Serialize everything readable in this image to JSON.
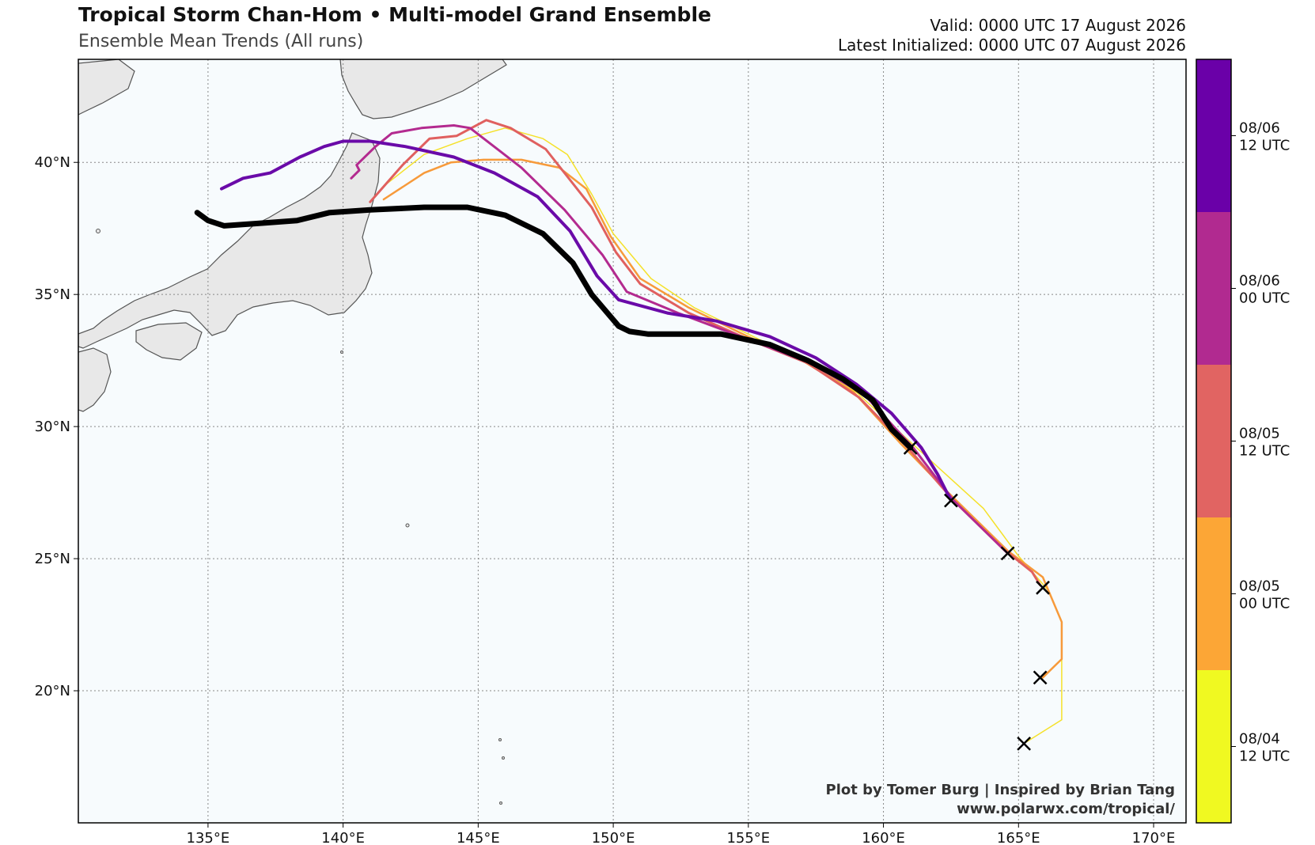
{
  "title": "Tropical Storm Chan-Hom • Multi-model Grand Ensemble",
  "subtitle": "Ensemble Mean Trends (All runs)",
  "valid": "Valid: 0000 UTC 17 August 2026",
  "latest": "Latest Initialized: 0000 UTC 07 August 2026",
  "credit_line1": "Plot by Tomer Burg | Inspired by Brian Tang",
  "credit_line2": "www.polarwx.com/tropical/",
  "colors": {
    "ocean": "#f7fbfd",
    "land": "#e8e8e8",
    "coast": "#555555",
    "grid": "#888888",
    "latest_track": "#000000"
  },
  "map": {
    "lon_range": [
      130.2,
      171.2
    ],
    "lat_range": [
      15.0,
      43.9
    ],
    "lon_ticks": [
      {
        "value": 135,
        "label": "135°E"
      },
      {
        "value": 140,
        "label": "140°E"
      },
      {
        "value": 145,
        "label": "145°E"
      },
      {
        "value": 150,
        "label": "150°E"
      },
      {
        "value": 155,
        "label": "155°E"
      },
      {
        "value": 160,
        "label": "160°E"
      },
      {
        "value": 165,
        "label": "165°E"
      },
      {
        "value": 170,
        "label": "170°E"
      }
    ],
    "lat_ticks": [
      {
        "value": 20,
        "label": "20°N"
      },
      {
        "value": 25,
        "label": "25°N"
      },
      {
        "value": 30,
        "label": "30°N"
      },
      {
        "value": 35,
        "label": "35°N"
      },
      {
        "value": 40,
        "label": "40°N"
      }
    ],
    "grid": true
  },
  "colorbar": {
    "segments": [
      {
        "color": "#6a00a8",
        "label_line1": "08/06",
        "label_line2": "12 UTC"
      },
      {
        "color": "#b12a90",
        "label_line1": "08/06",
        "label_line2": "00 UTC"
      },
      {
        "color": "#e16462",
        "label_line1": "08/05",
        "label_line2": "12 UTC"
      },
      {
        "color": "#fca636",
        "label_line1": "08/05",
        "label_line2": "00 UTC"
      },
      {
        "color": "#f0f921",
        "label_line1": "08/04",
        "label_line2": "12 UTC"
      }
    ]
  },
  "tracks": [
    {
      "color": "#f5e12a",
      "width": 1.5,
      "points": [
        [
          165.2,
          18.0
        ],
        [
          166.6,
          18.9
        ],
        [
          166.6,
          21.2
        ],
        [
          166.6,
          22.6
        ],
        [
          166.1,
          23.8
        ],
        [
          165.0,
          25.1
        ],
        [
          163.7,
          26.9
        ],
        [
          162.3,
          28.2
        ],
        [
          160.8,
          29.6
        ],
        [
          159.0,
          31.3
        ],
        [
          157.2,
          32.4
        ],
        [
          155.0,
          33.5
        ],
        [
          153.0,
          34.5
        ],
        [
          151.4,
          35.6
        ],
        [
          150.0,
          37.3
        ],
        [
          149.2,
          38.8
        ],
        [
          148.3,
          40.3
        ],
        [
          147.4,
          40.9
        ],
        [
          146.0,
          41.3
        ],
        [
          144.6,
          40.9
        ],
        [
          143.0,
          40.3
        ],
        [
          141.5,
          39.1
        ]
      ]
    },
    {
      "color": "#f79a3a",
      "width": 2.5,
      "points": [
        [
          165.9,
          20.5
        ],
        [
          166.6,
          21.2
        ],
        [
          166.6,
          22.6
        ],
        [
          165.9,
          24.3
        ],
        [
          164.6,
          25.3
        ],
        [
          162.3,
          27.6
        ],
        [
          160.6,
          29.4
        ],
        [
          158.9,
          31.3
        ],
        [
          157.0,
          32.5
        ],
        [
          155.0,
          33.4
        ],
        [
          152.8,
          34.5
        ],
        [
          151.0,
          35.6
        ],
        [
          149.9,
          37.2
        ],
        [
          149.0,
          39.0
        ],
        [
          148.0,
          39.8
        ],
        [
          146.6,
          40.1
        ],
        [
          145.2,
          40.1
        ],
        [
          144.0,
          40.0
        ],
        [
          143.0,
          39.6
        ],
        [
          141.5,
          38.6
        ]
      ]
    },
    {
      "color": "#e0605f",
      "width": 3,
      "points": [
        [
          165.8,
          24.0
        ],
        [
          165.5,
          24.5
        ],
        [
          164.4,
          25.4
        ],
        [
          162.6,
          27.2
        ],
        [
          160.9,
          29.2
        ],
        [
          159.1,
          31.1
        ],
        [
          157.2,
          32.4
        ],
        [
          155.0,
          33.3
        ],
        [
          152.8,
          34.3
        ],
        [
          151.0,
          35.4
        ],
        [
          150.1,
          36.6
        ],
        [
          149.2,
          38.3
        ],
        [
          147.5,
          40.5
        ],
        [
          146.2,
          41.3
        ],
        [
          145.3,
          41.6
        ],
        [
          144.2,
          41.0
        ],
        [
          143.2,
          40.9
        ],
        [
          142.2,
          39.9
        ],
        [
          141.0,
          38.5
        ]
      ]
    },
    {
      "color": "#b32a8f",
      "width": 3,
      "points": [
        [
          164.6,
          25.2
        ],
        [
          162.6,
          27.2
        ],
        [
          161.1,
          29.2
        ],
        [
          159.3,
          31.2
        ],
        [
          157.3,
          32.4
        ],
        [
          155.0,
          33.3
        ],
        [
          152.4,
          34.3
        ],
        [
          150.5,
          35.1
        ],
        [
          149.6,
          36.5
        ],
        [
          148.2,
          38.2
        ],
        [
          146.6,
          39.8
        ],
        [
          144.7,
          41.3
        ],
        [
          144.1,
          41.4
        ],
        [
          142.9,
          41.3
        ],
        [
          141.8,
          41.1
        ],
        [
          141.2,
          40.6
        ],
        [
          140.5,
          39.9
        ],
        [
          140.6,
          39.7
        ],
        [
          140.3,
          39.4
        ]
      ]
    },
    {
      "color": "#6a0aa8",
      "width": 4,
      "points": [
        [
          162.5,
          27.2
        ],
        [
          162.0,
          28.2
        ],
        [
          161.4,
          29.2
        ],
        [
          160.3,
          30.5
        ],
        [
          159.0,
          31.6
        ],
        [
          157.5,
          32.6
        ],
        [
          155.8,
          33.4
        ],
        [
          153.8,
          34.0
        ],
        [
          152.0,
          34.3
        ],
        [
          150.2,
          34.8
        ],
        [
          149.4,
          35.7
        ],
        [
          148.4,
          37.4
        ],
        [
          147.2,
          38.7
        ],
        [
          145.6,
          39.6
        ],
        [
          144.1,
          40.2
        ],
        [
          142.3,
          40.6
        ],
        [
          141.0,
          40.8
        ],
        [
          140.0,
          40.8
        ],
        [
          139.3,
          40.6
        ],
        [
          138.4,
          40.2
        ],
        [
          137.3,
          39.6
        ],
        [
          136.3,
          39.4
        ],
        [
          135.5,
          39.0
        ]
      ]
    },
    {
      "color": "#000000",
      "width": 7,
      "points": [
        [
          161.0,
          29.2
        ],
        [
          160.3,
          29.9
        ],
        [
          159.6,
          31.0
        ],
        [
          158.5,
          31.8
        ],
        [
          157.2,
          32.5
        ],
        [
          155.8,
          33.1
        ],
        [
          154.0,
          33.5
        ],
        [
          152.3,
          33.5
        ],
        [
          151.3,
          33.5
        ],
        [
          150.6,
          33.6
        ],
        [
          150.2,
          33.8
        ],
        [
          149.2,
          35.0
        ],
        [
          148.5,
          36.2
        ],
        [
          147.4,
          37.3
        ],
        [
          146.0,
          38.0
        ],
        [
          144.6,
          38.3
        ],
        [
          143.0,
          38.3
        ],
        [
          141.0,
          38.2
        ],
        [
          139.5,
          38.1
        ],
        [
          138.3,
          37.8
        ],
        [
          137.0,
          37.7
        ],
        [
          135.6,
          37.6
        ],
        [
          135.0,
          37.8
        ],
        [
          134.6,
          38.1
        ]
      ]
    }
  ],
  "x_marks": [
    [
      161.0,
      29.2
    ],
    [
      162.5,
      27.2
    ],
    [
      164.6,
      25.2
    ],
    [
      165.9,
      23.9
    ],
    [
      165.8,
      20.5
    ],
    [
      165.2,
      18.0
    ]
  ]
}
